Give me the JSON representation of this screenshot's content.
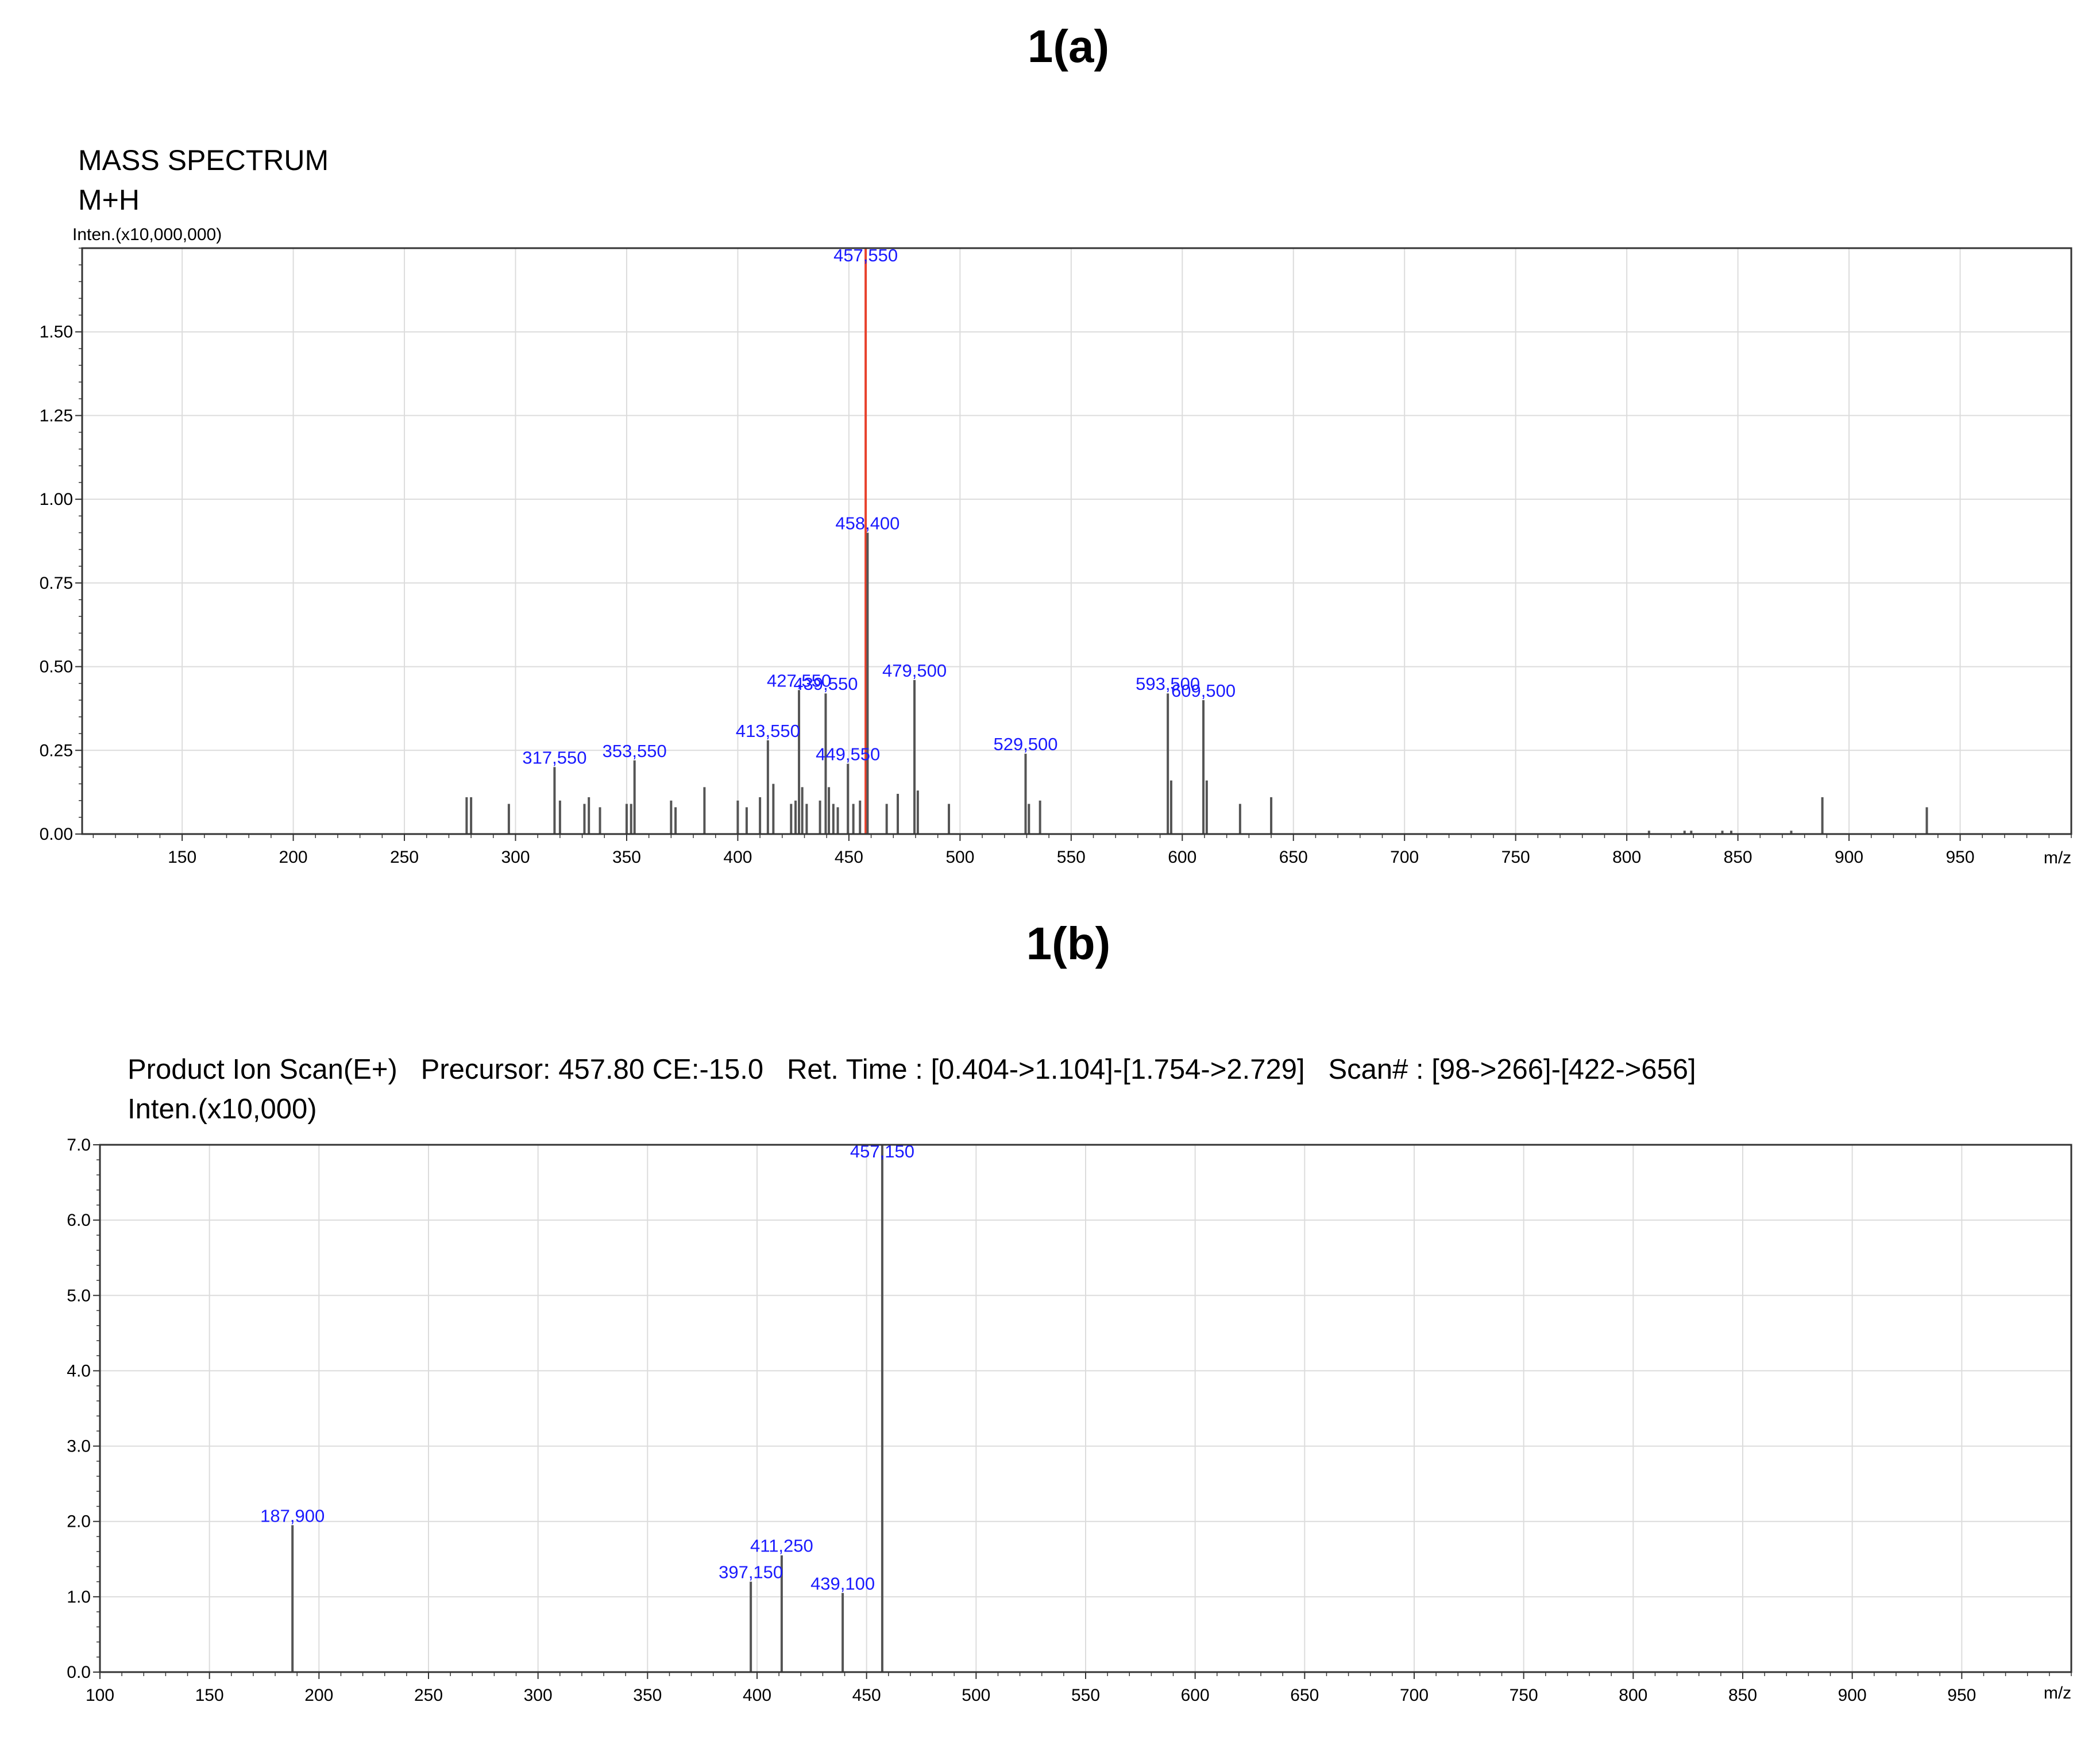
{
  "panels": {
    "a": {
      "label": "1(a)",
      "header_line1": "MASS SPECTRUM",
      "header_line2": "M+H",
      "ylabel": "Inten.(x10,000,000)",
      "xlabel": "m/z"
    },
    "b": {
      "label": "1(b)",
      "header_line1": "Product Ion Scan(E+)   Precursor: 457.80 CE:-15.0   Ret. Time : [0.404->1.104]-[1.754->2.729]   Scan# : [98->266]-[422->656]",
      "ylabel": "Inten.(x10,000)",
      "xlabel": "m/z"
    }
  },
  "colors": {
    "stick": "#555555",
    "highlight": "#e8412c",
    "peak_label": "#1a1aff",
    "grid": "#dcdcdc",
    "frame": "#333333",
    "text": "#000000"
  },
  "chart_data": [
    {
      "type": "bar",
      "subtype": "mass-spectrum-sticks",
      "title": "MASS SPECTRUM",
      "subtitle": "M+H",
      "xlabel": "m/z",
      "ylabel": "Inten.(x10,000,000)",
      "xlim": [
        105,
        1000
      ],
      "ylim": [
        0,
        1.75
      ],
      "xticks": [
        150,
        200,
        250,
        300,
        350,
        400,
        450,
        500,
        550,
        600,
        650,
        700,
        750,
        800,
        850,
        900,
        950
      ],
      "yticks": [
        0.0,
        0.25,
        0.5,
        0.75,
        1.0,
        1.25,
        1.5
      ],
      "ytick_labels": [
        "0.00",
        "0.25",
        "0.50",
        "0.75",
        "1.00",
        "1.25",
        "1.50"
      ],
      "grid": true,
      "highlight_mz": 457.55,
      "peaks": [
        {
          "mz": 278.0,
          "y": 0.11
        },
        {
          "mz": 280.0,
          "y": 0.11
        },
        {
          "mz": 297.0,
          "y": 0.09
        },
        {
          "mz": 317.55,
          "y": 0.2,
          "label": "317,550"
        },
        {
          "mz": 320.0,
          "y": 0.1
        },
        {
          "mz": 331.0,
          "y": 0.09
        },
        {
          "mz": 333.0,
          "y": 0.11
        },
        {
          "mz": 338.0,
          "y": 0.08
        },
        {
          "mz": 350.0,
          "y": 0.09
        },
        {
          "mz": 352.0,
          "y": 0.09
        },
        {
          "mz": 353.55,
          "y": 0.22,
          "label": "353,550"
        },
        {
          "mz": 370.0,
          "y": 0.1
        },
        {
          "mz": 372.0,
          "y": 0.08
        },
        {
          "mz": 385.0,
          "y": 0.14
        },
        {
          "mz": 400.0,
          "y": 0.1
        },
        {
          "mz": 404.0,
          "y": 0.08
        },
        {
          "mz": 410.0,
          "y": 0.11
        },
        {
          "mz": 413.55,
          "y": 0.28,
          "label": "413,550"
        },
        {
          "mz": 416.0,
          "y": 0.15
        },
        {
          "mz": 424.0,
          "y": 0.09
        },
        {
          "mz": 426.0,
          "y": 0.1
        },
        {
          "mz": 427.55,
          "y": 0.43,
          "label": "427,550"
        },
        {
          "mz": 429.0,
          "y": 0.14
        },
        {
          "mz": 431.0,
          "y": 0.09
        },
        {
          "mz": 437.0,
          "y": 0.1
        },
        {
          "mz": 439.55,
          "y": 0.42,
          "label": "439,550"
        },
        {
          "mz": 441.0,
          "y": 0.14
        },
        {
          "mz": 443.0,
          "y": 0.09
        },
        {
          "mz": 445.0,
          "y": 0.08
        },
        {
          "mz": 449.55,
          "y": 0.21,
          "label": "449,550"
        },
        {
          "mz": 452.0,
          "y": 0.09
        },
        {
          "mz": 455.0,
          "y": 0.1
        },
        {
          "mz": 457.55,
          "y": 1.75,
          "label": "457,550"
        },
        {
          "mz": 458.4,
          "y": 0.9,
          "label": "458,400"
        },
        {
          "mz": 467.0,
          "y": 0.09
        },
        {
          "mz": 472.0,
          "y": 0.12
        },
        {
          "mz": 479.5,
          "y": 0.46,
          "label": "479,500"
        },
        {
          "mz": 481.0,
          "y": 0.13
        },
        {
          "mz": 495.0,
          "y": 0.09
        },
        {
          "mz": 529.5,
          "y": 0.24,
          "label": "529,500"
        },
        {
          "mz": 531.0,
          "y": 0.09
        },
        {
          "mz": 536.0,
          "y": 0.1
        },
        {
          "mz": 593.5,
          "y": 0.42,
          "label": "593,500"
        },
        {
          "mz": 595.0,
          "y": 0.16
        },
        {
          "mz": 609.5,
          "y": 0.4,
          "label": "609,500"
        },
        {
          "mz": 611.0,
          "y": 0.16
        },
        {
          "mz": 626.0,
          "y": 0.09
        },
        {
          "mz": 640.0,
          "y": 0.11
        },
        {
          "mz": 810.0,
          "y": 0.01
        },
        {
          "mz": 826.0,
          "y": 0.01
        },
        {
          "mz": 829.0,
          "y": 0.01
        },
        {
          "mz": 843.0,
          "y": 0.01
        },
        {
          "mz": 847.0,
          "y": 0.01
        },
        {
          "mz": 874.0,
          "y": 0.01
        },
        {
          "mz": 888.0,
          "y": 0.11
        },
        {
          "mz": 935.0,
          "y": 0.08
        }
      ]
    },
    {
      "type": "bar",
      "subtype": "mass-spectrum-sticks",
      "title": "Product Ion Scan(E+)   Precursor: 457.80 CE:-15.0   Ret. Time : [0.404->1.104]-[1.754->2.729]   Scan# : [98->266]-[422->656]",
      "xlabel": "m/z",
      "ylabel": "Inten.(x10,000)",
      "xlim": [
        100,
        1000
      ],
      "ylim": [
        0,
        7.0
      ],
      "xticks": [
        100,
        150,
        200,
        250,
        300,
        350,
        400,
        450,
        500,
        550,
        600,
        650,
        700,
        750,
        800,
        850,
        900,
        950
      ],
      "yticks": [
        0,
        1,
        2,
        3,
        4,
        5,
        6,
        7
      ],
      "ytick_labels": [
        "0.0",
        "1.0",
        "2.0",
        "3.0",
        "4.0",
        "5.0",
        "6.0",
        "7.0"
      ],
      "grid": true,
      "peaks": [
        {
          "mz": 187.9,
          "y": 1.95,
          "label": "187,900"
        },
        {
          "mz": 397.15,
          "y": 1.2,
          "label": "397,150"
        },
        {
          "mz": 411.25,
          "y": 1.55,
          "label": "411,250"
        },
        {
          "mz": 439.1,
          "y": 1.05,
          "label": "439,100"
        },
        {
          "mz": 457.15,
          "y": 7.0,
          "label": "457,150"
        }
      ]
    }
  ]
}
